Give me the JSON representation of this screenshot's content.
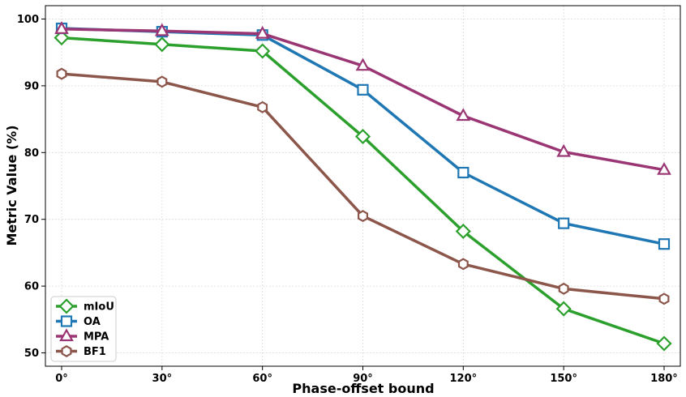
{
  "chart_data": {
    "type": "line",
    "xlabel": "Phase-offset bound",
    "ylabel": "Metric Value (%)",
    "categories": [
      "0°",
      "30°",
      "60°",
      "90°",
      "120°",
      "150°",
      "180°"
    ],
    "ylim": [
      48,
      102
    ],
    "yticks": [
      50,
      60,
      70,
      80,
      90,
      100
    ],
    "grid": true,
    "legend_position": "bottom-left",
    "series": [
      {
        "name": "mIoU",
        "color": "#2ca02c",
        "marker": "diamond",
        "values": [
          97.2,
          96.2,
          95.2,
          82.4,
          68.2,
          56.6,
          51.4
        ]
      },
      {
        "name": "OA",
        "color": "#1f77b4",
        "marker": "square",
        "values": [
          98.6,
          98.1,
          97.6,
          89.4,
          77.0,
          69.4,
          66.3
        ]
      },
      {
        "name": "MPA",
        "color": "#9b3674",
        "marker": "triangle",
        "values": [
          98.5,
          98.2,
          97.8,
          93.0,
          85.5,
          80.1,
          77.4
        ]
      },
      {
        "name": "BF1",
        "color": "#8c564b",
        "marker": "hexagon",
        "values": [
          91.8,
          90.6,
          86.8,
          70.5,
          63.3,
          59.6,
          58.1
        ]
      }
    ]
  }
}
